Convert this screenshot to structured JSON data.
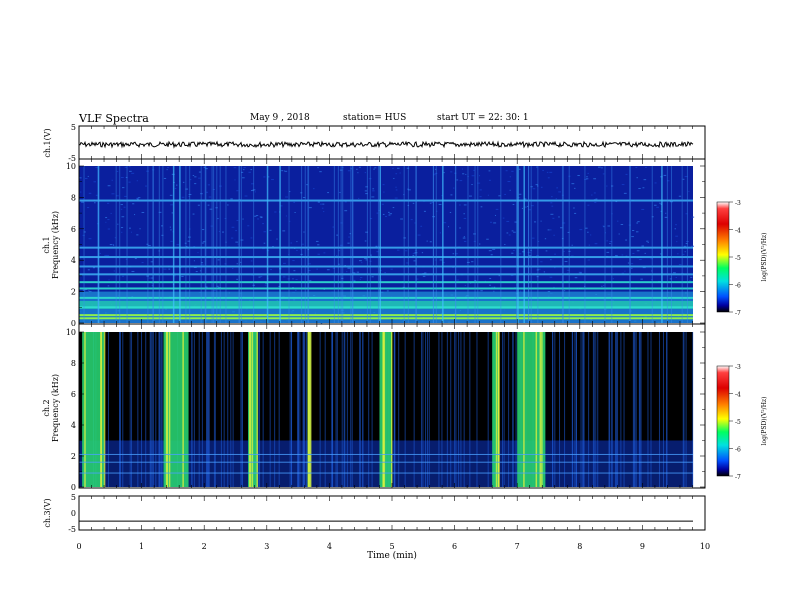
{
  "header": {
    "title": "VLF Spectra",
    "date": "May 9 , 2018",
    "station": "station= HUS",
    "start": "start UT = 22: 30: 1"
  },
  "chart_data": [
    {
      "type": "line",
      "panel": "ch1-waveform",
      "ylabel": "ch.1(V)",
      "ylim": [
        -5,
        5
      ],
      "yticks": [
        "5",
        "-5"
      ],
      "xlim": [
        0,
        10
      ],
      "series": [
        {
          "values_description_free": true,
          "level": 0,
          "amplitude": 0.4
        }
      ],
      "line_color": "#000000"
    },
    {
      "type": "heatmap",
      "panel": "ch1-spectrogram",
      "ylabel": "ch.1 Frequency (kHz)",
      "ylabel_lines": [
        "ch.1",
        "Frequency (kHz)"
      ],
      "ylim": [
        0,
        10
      ],
      "yticks": [
        "0",
        "2",
        "4",
        "6",
        "8",
        "10"
      ],
      "xlim": [
        0,
        9.8
      ],
      "colorbar": {
        "label": "log(PSD)(V²/Hz)",
        "ticks": [
          "-3",
          "-4",
          "-5",
          "-6",
          "-7"
        ],
        "range": [
          -7,
          -3
        ]
      },
      "horizontal_bands_khz": [
        0.3,
        0.5,
        1.0,
        1.6,
        2.2,
        2.6,
        3.1,
        3.6,
        4.2,
        4.8,
        7.8
      ],
      "broadband_times_min": [
        0.3,
        1.5,
        1.6,
        3.0,
        3.2,
        4.8,
        5.8,
        7.0,
        7.1,
        9.3
      ],
      "background_level": -6.2
    },
    {
      "type": "heatmap",
      "panel": "ch2-spectrogram",
      "ylabel": "ch.2 Frequency (kHz)",
      "ylabel_lines": [
        "ch.2",
        "Frequency (kHz)"
      ],
      "ylim": [
        0,
        10
      ],
      "yticks": [
        "0",
        "2",
        "4",
        "6",
        "8",
        "10"
      ],
      "xlim": [
        0,
        9.8
      ],
      "colorbar": {
        "label": "log(PSD)(V²/Hz)",
        "ticks": [
          "-3",
          "-4",
          "-5",
          "-6",
          "-7"
        ],
        "range": [
          -7,
          -3
        ]
      },
      "broadband_bursts_min": [
        [
          0.05,
          0.4
        ],
        [
          1.35,
          1.75
        ],
        [
          2.7,
          2.85
        ],
        [
          3.65,
          3.7
        ],
        [
          4.8,
          5.0
        ],
        [
          6.6,
          6.7
        ],
        [
          7.0,
          7.45
        ]
      ],
      "background_level": -7.2
    },
    {
      "type": "line",
      "panel": "ch3-waveform",
      "ylabel": "ch.3(V)",
      "ylim": [
        -5,
        5
      ],
      "yticks": [
        "5",
        "0",
        "-5"
      ],
      "xlim": [
        0,
        10
      ],
      "series": [
        {
          "level": -2.4
        }
      ],
      "xlabel": "Time (min)",
      "xticks": [
        "0",
        "1",
        "2",
        "3",
        "4",
        "5",
        "6",
        "7",
        "8",
        "9",
        "10"
      ],
      "line_color": "#000000"
    }
  ]
}
